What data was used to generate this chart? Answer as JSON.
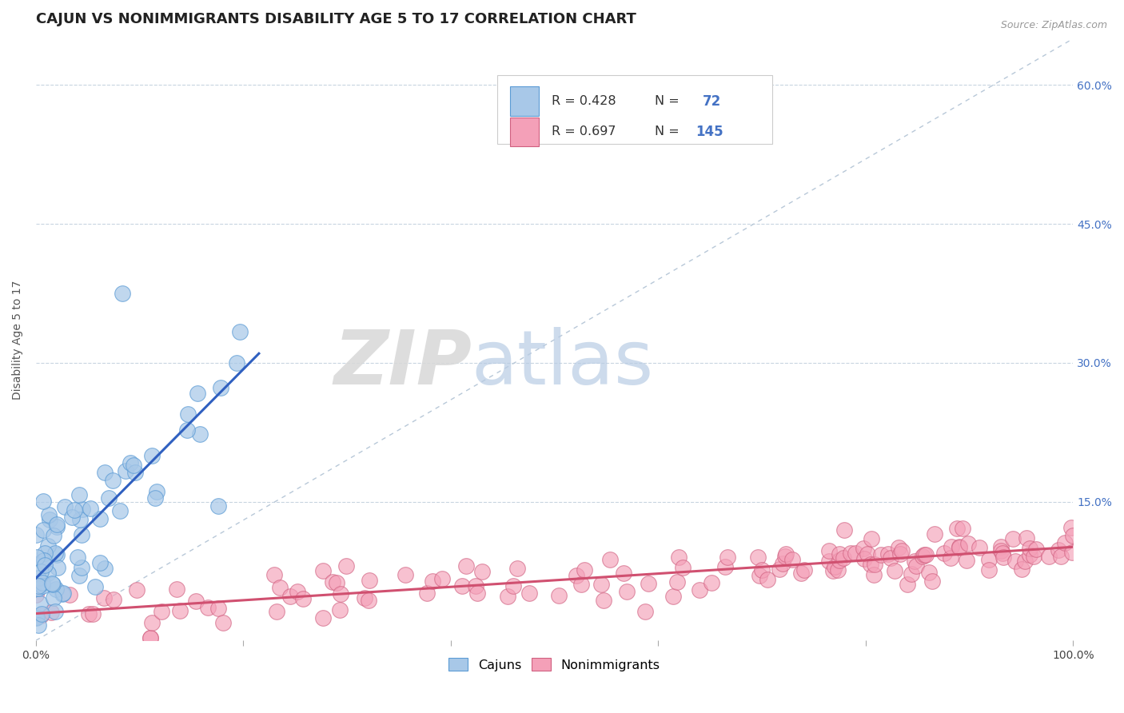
{
  "title": "CAJUN VS NONIMMIGRANTS DISABILITY AGE 5 TO 17 CORRELATION CHART",
  "source": "Source: ZipAtlas.com",
  "ylabel": "Disability Age 5 to 17",
  "xlabel": "",
  "xlim": [
    0,
    1.0
  ],
  "ylim": [
    0,
    0.65
  ],
  "ytick_right_vals": [
    0.15,
    0.3,
    0.45,
    0.6
  ],
  "ytick_right_labels": [
    "15.0%",
    "30.0%",
    "45.0%",
    "60.0%"
  ],
  "blue_color": "#a8c8e8",
  "blue_edge": "#5b9bd5",
  "pink_color": "#f4a0b8",
  "pink_edge": "#d06080",
  "trend_blue": "#3060c0",
  "trend_pink": "#d05070",
  "ref_line_color": "#b8c8d8",
  "legend_R_color": "#333333",
  "legend_N_color": "#4472c4",
  "legend_color": "#4472c4",
  "watermark_zip": "ZIP",
  "watermark_atlas": "atlas",
  "title_fontsize": 13,
  "axis_label_fontsize": 10,
  "tick_label_fontsize": 10,
  "background_color": "#ffffff",
  "grid_color": "#c8d4e0"
}
